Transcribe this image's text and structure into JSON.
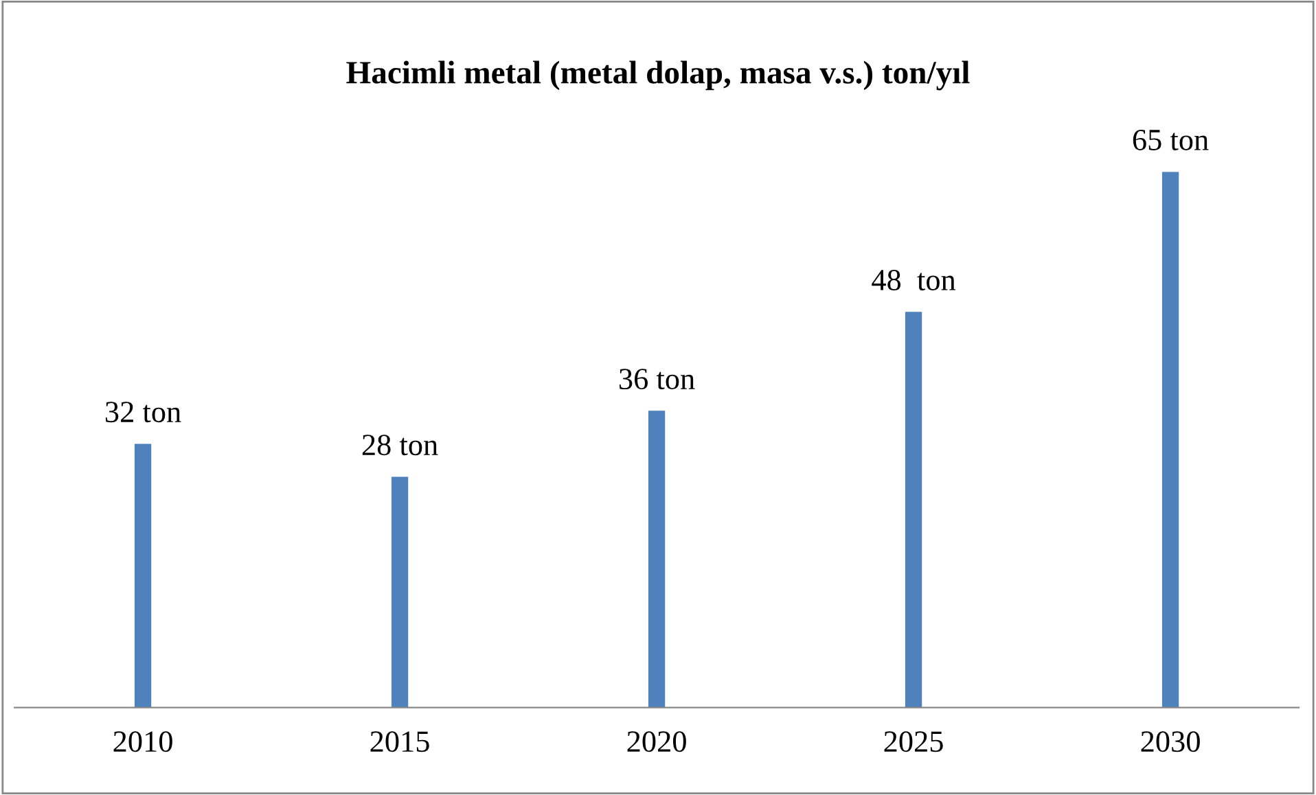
{
  "chart_data": {
    "type": "bar",
    "title": "Hacimli metal (metal dolap, masa v.s.) ton/yıl",
    "categories": [
      "2010",
      "2015",
      "2020",
      "2025",
      "2030"
    ],
    "values": [
      32,
      28,
      36,
      48,
      65
    ],
    "value_labels": [
      "32 ton",
      "28 ton",
      "36 ton",
      "48  ton",
      "65 ton"
    ],
    "color": "#4f81bd",
    "grid": false,
    "legend": false
  }
}
